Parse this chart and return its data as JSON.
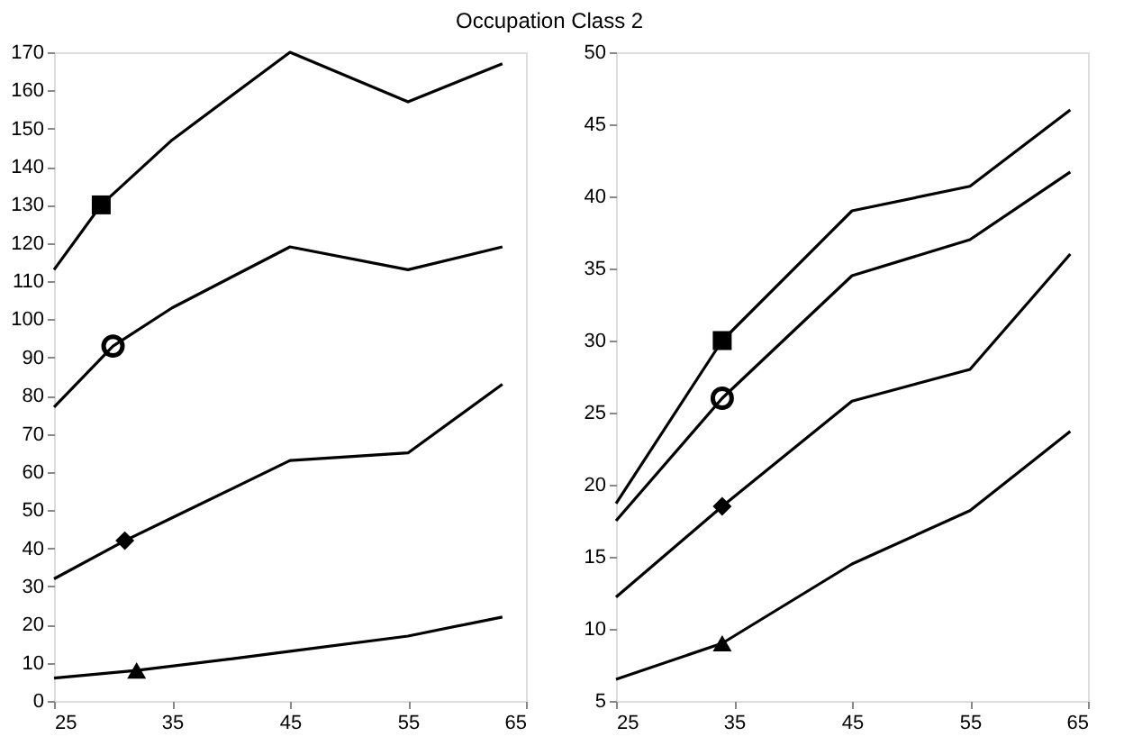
{
  "chart_data": [
    {
      "type": "line",
      "title": "Occupation Class 2",
      "xlim": [
        25,
        65
      ],
      "xticks": [
        25,
        35,
        45,
        55,
        65
      ],
      "ylim": [
        0,
        170
      ],
      "yticks": [
        0,
        10,
        20,
        30,
        40,
        50,
        60,
        70,
        80,
        90,
        100,
        110,
        120,
        130,
        140,
        150,
        160,
        170
      ],
      "grid": false,
      "series": [
        {
          "color": "#000000",
          "marker": "none",
          "x": [
            25,
            29,
            35,
            45,
            55,
            63
          ],
          "values": [
            113,
            130,
            147,
            170,
            157,
            167
          ]
        },
        {
          "color": "#000000",
          "marker": "none",
          "x": [
            25,
            30,
            35,
            45,
            55,
            63
          ],
          "values": [
            77,
            93,
            103,
            119,
            113,
            119
          ]
        },
        {
          "color": "#000000",
          "marker": "none",
          "x": [
            25,
            31,
            35,
            45,
            55,
            63
          ],
          "values": [
            32,
            42,
            48,
            63,
            65,
            83
          ]
        },
        {
          "color": "#000000",
          "marker": "none",
          "x": [
            25,
            32,
            40,
            45,
            55,
            63
          ],
          "values": [
            6,
            8,
            11,
            13,
            17,
            22
          ]
        },
        {
          "type": "scatter",
          "color": "#000000",
          "marker": "square",
          "x": [
            29
          ],
          "values": [
            130
          ]
        },
        {
          "type": "scatter",
          "color": "#000000",
          "marker": "circle",
          "x": [
            30
          ],
          "values": [
            93
          ]
        },
        {
          "type": "scatter",
          "color": "#000000",
          "marker": "diamond",
          "x": [
            31
          ],
          "values": [
            42
          ]
        },
        {
          "type": "scatter",
          "color": "#000000",
          "marker": "triangle",
          "x": [
            32
          ],
          "values": [
            8
          ]
        }
      ]
    },
    {
      "type": "line",
      "xlim": [
        25,
        65
      ],
      "xticks": [
        25,
        35,
        45,
        55,
        65
      ],
      "ylim": [
        5,
        50
      ],
      "yticks": [
        5,
        10,
        15,
        20,
        25,
        30,
        35,
        40,
        45,
        50
      ],
      "grid": false,
      "series": [
        {
          "color": "#000000",
          "marker": "none",
          "x": [
            25,
            34,
            45,
            55,
            63.5
          ],
          "values": [
            18.7,
            30,
            39,
            40.7,
            46
          ]
        },
        {
          "color": "#000000",
          "marker": "none",
          "x": [
            25,
            34,
            45,
            55,
            63.5
          ],
          "values": [
            17.5,
            26,
            34.5,
            37,
            41.7
          ]
        },
        {
          "color": "#000000",
          "marker": "none",
          "x": [
            25,
            34,
            45,
            55,
            63.5
          ],
          "values": [
            12.2,
            18.5,
            25.8,
            28,
            36
          ]
        },
        {
          "color": "#000000",
          "marker": "none",
          "x": [
            25,
            34,
            45,
            55,
            63.5
          ],
          "values": [
            6.5,
            9,
            14.5,
            18.2,
            23.7
          ]
        },
        {
          "type": "scatter",
          "color": "#000000",
          "marker": "square",
          "x": [
            34
          ],
          "values": [
            30
          ]
        },
        {
          "type": "scatter",
          "color": "#000000",
          "marker": "circle",
          "x": [
            34
          ],
          "values": [
            26
          ]
        },
        {
          "type": "scatter",
          "color": "#000000",
          "marker": "diamond",
          "x": [
            34
          ],
          "values": [
            18.5
          ]
        },
        {
          "type": "scatter",
          "color": "#000000",
          "marker": "triangle",
          "x": [
            34
          ],
          "values": [
            9
          ]
        }
      ]
    }
  ]
}
